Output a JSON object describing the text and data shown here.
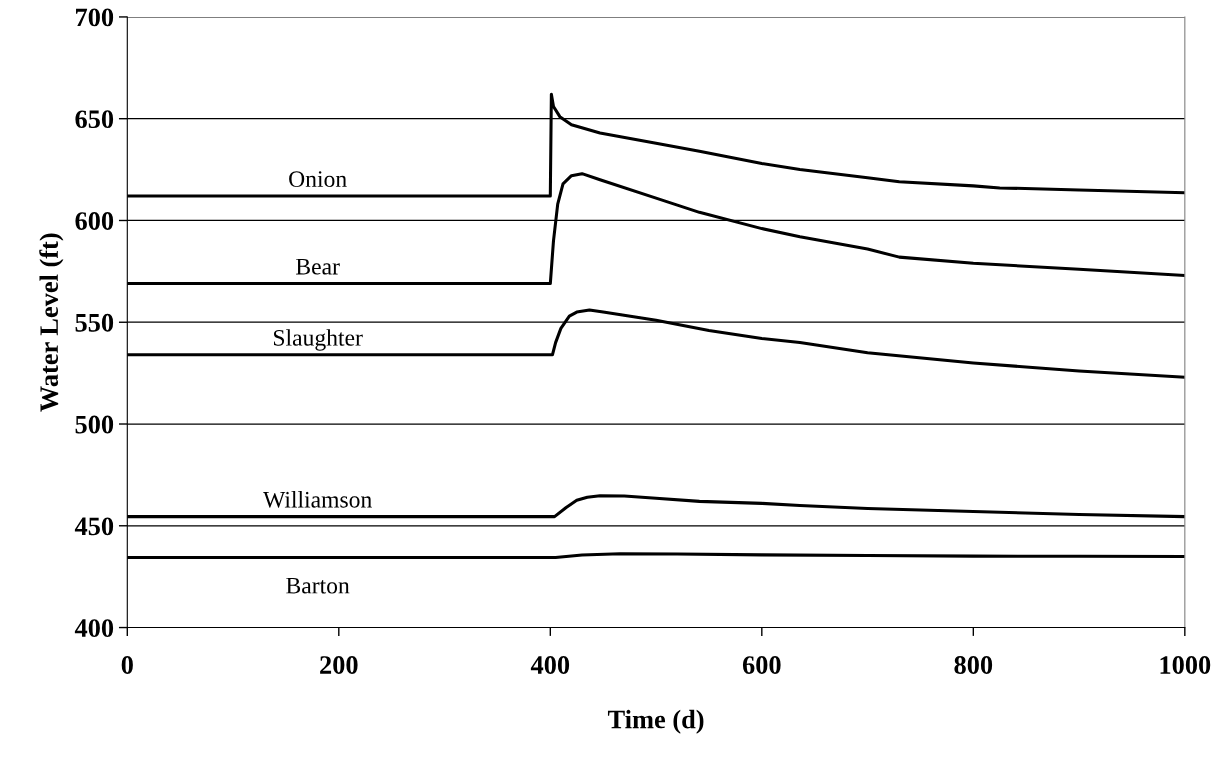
{
  "chart_data": {
    "type": "line",
    "xlabel": "Time (d)",
    "ylabel": "Water Level (ft)",
    "xlim": [
      0,
      1000
    ],
    "ylim": [
      400,
      700
    ],
    "xticks": [
      0,
      200,
      400,
      600,
      800,
      1000
    ],
    "yticks": [
      400,
      450,
      500,
      550,
      600,
      650,
      700
    ],
    "grid": "y",
    "legend": false,
    "marker": "none",
    "line_style": "solid",
    "series": [
      {
        "name": "Onion",
        "color": "#000000",
        "x": [
          0,
          400,
          401,
          403,
          409,
          420,
          447,
          500,
          541,
          600,
          636,
          700,
          730,
          800,
          825,
          900,
          1000
        ],
        "values": [
          612,
          612,
          662,
          656,
          651,
          647,
          643,
          638,
          634,
          628,
          625,
          621,
          619,
          617,
          616,
          615,
          613.6
        ]
      },
      {
        "name": "Bear",
        "color": "#000000",
        "x": [
          0,
          400,
          403,
          407,
          412,
          420,
          430,
          447,
          500,
          541,
          600,
          636,
          700,
          730,
          800,
          900,
          1000
        ],
        "values": [
          569,
          569,
          590,
          608,
          618,
          622,
          623,
          620,
          611,
          604,
          596,
          592,
          586,
          582,
          579,
          576,
          573
        ]
      },
      {
        "name": "Slaughter",
        "color": "#000000",
        "x": [
          0,
          402,
          405,
          410,
          418,
          425,
          437,
          450,
          500,
          550,
          600,
          636,
          700,
          800,
          900,
          1000
        ],
        "values": [
          534,
          534,
          540,
          547,
          553,
          555,
          556,
          555,
          551,
          546,
          542,
          540,
          535,
          530,
          526,
          523
        ]
      },
      {
        "name": "Williamson",
        "color": "#000000",
        "x": [
          0,
          404,
          415,
          425,
          435,
          447,
          470,
          500,
          541,
          600,
          636,
          700,
          800,
          900,
          1000
        ],
        "values": [
          454.5,
          454.5,
          459,
          462.5,
          464,
          464.8,
          464.6,
          463.5,
          462,
          461,
          460,
          458.5,
          457,
          455.5,
          454.5
        ]
      },
      {
        "name": "Barton",
        "color": "#000000",
        "x": [
          0,
          405,
          430,
          466,
          520,
          600,
          700,
          800,
          900,
          1000
        ],
        "values": [
          434.4,
          434.4,
          435.6,
          436.3,
          436.1,
          435.7,
          435.4,
          435.1,
          435,
          434.9
        ]
      }
    ]
  }
}
